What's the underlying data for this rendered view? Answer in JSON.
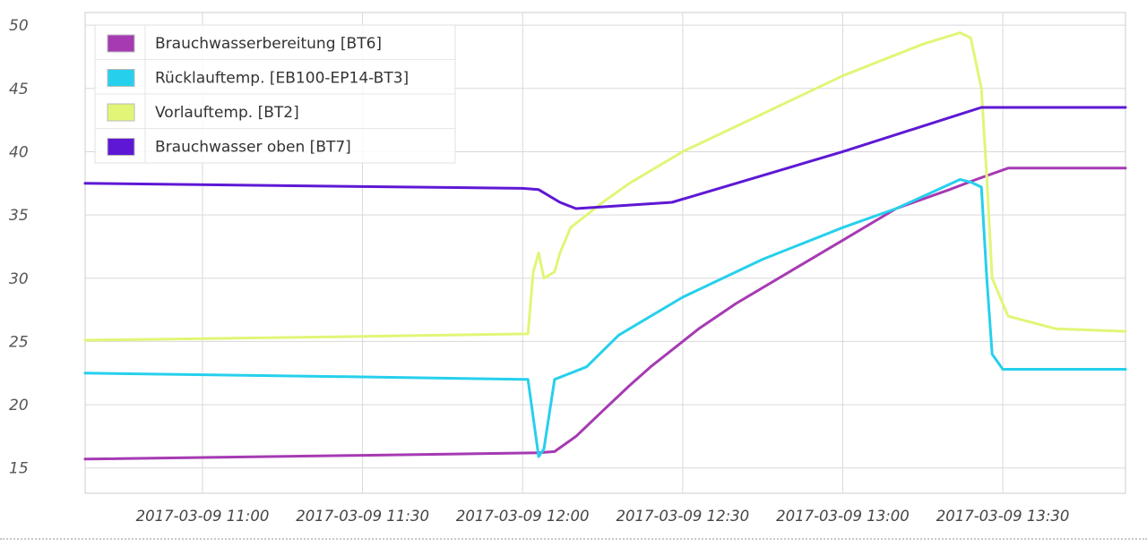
{
  "chart_data": {
    "type": "line",
    "x_unit": "time",
    "ylim": [
      13,
      51
    ],
    "xlim": [
      "2017-03-09 10:38",
      "2017-03-09 13:53"
    ],
    "y_ticks": [
      15,
      20,
      25,
      30,
      35,
      40,
      45,
      50
    ],
    "x_ticks": [
      {
        "label": "2017-03-09 11:00",
        "t": "11:00"
      },
      {
        "label": "2017-03-09 11:30",
        "t": "11:30"
      },
      {
        "label": "2017-03-09 12:00",
        "t": "12:00"
      },
      {
        "label": "2017-03-09 12:30",
        "t": "12:30"
      },
      {
        "label": "2017-03-09 13:00",
        "t": "13:00"
      },
      {
        "label": "2017-03-09 13:30",
        "t": "13:30"
      }
    ],
    "grid": true,
    "legend_position": "top-left",
    "series": [
      {
        "name": "Brauchwasserbereitung [BT6]",
        "color": "#a63ab3",
        "points": [
          [
            "10:38",
            15.7
          ],
          [
            "11:30",
            16.0
          ],
          [
            "12:03",
            16.2
          ],
          [
            "12:06",
            16.3
          ],
          [
            "12:10",
            17.5
          ],
          [
            "12:15",
            19.5
          ],
          [
            "12:20",
            21.5
          ],
          [
            "12:24",
            23.0
          ],
          [
            "12:27",
            24.0
          ],
          [
            "12:33",
            26.0
          ],
          [
            "12:40",
            28.0
          ],
          [
            "12:50",
            30.5
          ],
          [
            "13:00",
            33.0
          ],
          [
            "13:10",
            35.5
          ],
          [
            "13:20",
            37.0
          ],
          [
            "13:25",
            37.8
          ],
          [
            "13:31",
            38.7
          ],
          [
            "13:53",
            38.7
          ]
        ]
      },
      {
        "name": "Rücklauftemp. [EB100-EP14-BT3]",
        "color": "#26d0ec",
        "points": [
          [
            "10:38",
            22.5
          ],
          [
            "11:30",
            22.2
          ],
          [
            "12:00",
            22.0
          ],
          [
            "12:01",
            22.0
          ],
          [
            "12:03",
            15.9
          ],
          [
            "12:04",
            16.5
          ],
          [
            "12:06",
            22.0
          ],
          [
            "12:12",
            23.0
          ],
          [
            "12:18",
            25.5
          ],
          [
            "12:20",
            26.0
          ],
          [
            "12:30",
            28.5
          ],
          [
            "12:45",
            31.5
          ],
          [
            "13:00",
            34.0
          ],
          [
            "13:10",
            35.5
          ],
          [
            "13:22",
            37.8
          ],
          [
            "13:24",
            37.6
          ],
          [
            "13:26",
            37.2
          ],
          [
            "13:27",
            30.0
          ],
          [
            "13:28",
            24.0
          ],
          [
            "13:30",
            22.8
          ],
          [
            "13:53",
            22.8
          ]
        ]
      },
      {
        "name": "Vorlauftemp. [BT2]",
        "color": "#e2f577",
        "points": [
          [
            "10:38",
            25.1
          ],
          [
            "11:30",
            25.4
          ],
          [
            "12:01",
            25.6
          ],
          [
            "12:02",
            30.5
          ],
          [
            "12:03",
            32.0
          ],
          [
            "12:04",
            30.0
          ],
          [
            "12:06",
            30.5
          ],
          [
            "12:07",
            32.0
          ],
          [
            "12:09",
            34.0
          ],
          [
            "12:15",
            36.0
          ],
          [
            "12:20",
            37.5
          ],
          [
            "12:30",
            40.0
          ],
          [
            "12:45",
            43.0
          ],
          [
            "13:00",
            46.0
          ],
          [
            "13:15",
            48.5
          ],
          [
            "13:22",
            49.4
          ],
          [
            "13:24",
            49.0
          ],
          [
            "13:26",
            45.0
          ],
          [
            "13:27",
            38.0
          ],
          [
            "13:28",
            30.0
          ],
          [
            "13:31",
            27.0
          ],
          [
            "13:40",
            26.0
          ],
          [
            "13:53",
            25.8
          ]
        ]
      },
      {
        "name": "Brauchwasser oben [BT7]",
        "color": "#5e18d5",
        "points": [
          [
            "10:38",
            37.5
          ],
          [
            "12:00",
            37.1
          ],
          [
            "12:03",
            37.0
          ],
          [
            "12:07",
            36.0
          ],
          [
            "12:10",
            35.5
          ],
          [
            "12:28",
            36.0
          ],
          [
            "12:40",
            37.5
          ],
          [
            "13:00",
            40.0
          ],
          [
            "13:26",
            43.5
          ],
          [
            "13:53",
            43.5
          ]
        ]
      }
    ]
  }
}
